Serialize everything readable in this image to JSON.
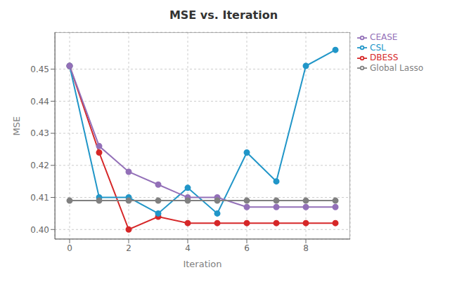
{
  "chart_data": {
    "type": "line",
    "title": "MSE vs. Iteration",
    "x_label": "Iteration",
    "y_label": "MSE",
    "x": [
      0,
      1,
      2,
      3,
      4,
      5,
      6,
      7,
      8,
      9
    ],
    "series": [
      {
        "name": "DBESS",
        "color": "#d62728",
        "marker": "circle",
        "values": [
          0.451,
          0.424,
          0.4,
          0.404,
          0.402,
          0.402,
          0.402,
          0.402,
          0.402,
          0.402
        ]
      },
      {
        "name": "CSL",
        "color": "#2196c8",
        "marker": "circle",
        "values": [
          0.451,
          0.41,
          0.41,
          0.405,
          0.413,
          0.405,
          0.424,
          0.415,
          0.451,
          0.456
        ]
      },
      {
        "name": "CEASE",
        "color": "#9370b8",
        "marker": "circle",
        "values": [
          0.451,
          0.426,
          0.418,
          0.414,
          0.41,
          0.41,
          0.407,
          0.407,
          0.407,
          0.407
        ]
      },
      {
        "name": "Global Lasso",
        "color": "#808080",
        "marker": "circle",
        "values": [
          0.409,
          0.409,
          0.409,
          0.409,
          0.409,
          0.409,
          0.409,
          0.409,
          0.409,
          0.409
        ]
      }
    ],
    "xlim": [
      -0.5,
      9.5
    ],
    "xticks": [
      0,
      2,
      4,
      6,
      8
    ],
    "ylim": [
      0.397,
      0.4615
    ],
    "yticks": [
      {
        "value": 0.4,
        "label": "0.40"
      },
      0.41,
      0.42,
      0.43,
      0.44,
      0.45
    ],
    "grid": true,
    "legend": "upper right"
  }
}
